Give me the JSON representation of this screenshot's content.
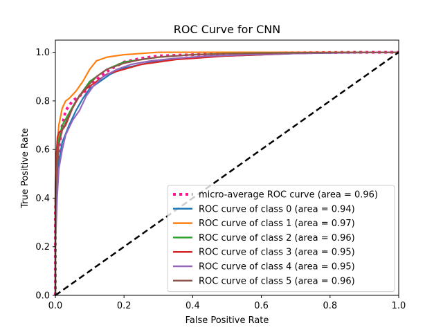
{
  "chart_data": {
    "type": "line",
    "title": "ROC Curve for CNN",
    "xlabel": "False Positive Rate",
    "ylabel": "True Positive Rate",
    "xlim": [
      0.0,
      1.0
    ],
    "ylim": [
      0.0,
      1.05
    ],
    "xticks": [
      0.0,
      0.2,
      0.4,
      0.6,
      0.8,
      1.0
    ],
    "yticks": [
      0.0,
      0.2,
      0.4,
      0.6,
      0.8,
      1.0
    ],
    "xtick_labels": [
      "0.0",
      "0.2",
      "0.4",
      "0.6",
      "0.8",
      "1.0"
    ],
    "ytick_labels": [
      "0.0",
      "0.2",
      "0.4",
      "0.6",
      "0.8",
      "1.0"
    ],
    "grid": false,
    "legend_position": "lower-right",
    "series": [
      {
        "name": "micro-average ROC curve (area = 0.96)",
        "color": "#ff1493",
        "style": "dotted",
        "x": [
          0.0,
          0.0,
          0.005,
          0.01,
          0.02,
          0.03,
          0.05,
          0.08,
          0.1,
          0.13,
          0.16,
          0.2,
          0.25,
          0.3,
          0.4,
          0.5,
          0.6,
          0.7,
          0.8,
          0.9,
          1.0
        ],
        "y": [
          0.0,
          0.35,
          0.5,
          0.6,
          0.7,
          0.76,
          0.8,
          0.83,
          0.86,
          0.9,
          0.93,
          0.96,
          0.975,
          0.985,
          0.99,
          0.995,
          0.997,
          0.998,
          0.999,
          1.0,
          1.0
        ]
      },
      {
        "name": "ROC curve of class 0 (area = 0.94)",
        "color": "#1f77b4",
        "style": "solid",
        "x": [
          0.0,
          0.0,
          0.005,
          0.01,
          0.02,
          0.04,
          0.06,
          0.08,
          0.1,
          0.13,
          0.16,
          0.2,
          0.25,
          0.3,
          0.4,
          0.5,
          0.6,
          0.7,
          0.8,
          0.9,
          1.0
        ],
        "y": [
          0.0,
          0.3,
          0.45,
          0.55,
          0.63,
          0.7,
          0.76,
          0.81,
          0.85,
          0.88,
          0.91,
          0.935,
          0.95,
          0.965,
          0.98,
          0.985,
          0.99,
          0.995,
          0.997,
          0.999,
          1.0
        ]
      },
      {
        "name": "ROC curve of class 1 (area = 0.97)",
        "color": "#ff7f0e",
        "style": "solid",
        "x": [
          0.0,
          0.0,
          0.005,
          0.01,
          0.02,
          0.03,
          0.04,
          0.06,
          0.08,
          0.1,
          0.12,
          0.15,
          0.2,
          0.25,
          0.3,
          0.4,
          0.5,
          0.6,
          0.8,
          1.0
        ],
        "y": [
          0.0,
          0.4,
          0.6,
          0.7,
          0.77,
          0.8,
          0.81,
          0.84,
          0.88,
          0.93,
          0.965,
          0.98,
          0.99,
          0.995,
          1.0,
          1.0,
          1.0,
          1.0,
          1.0,
          1.0
        ]
      },
      {
        "name": "ROC curve of class 2 (area = 0.96)",
        "color": "#2ca02c",
        "style": "solid",
        "x": [
          0.0,
          0.0,
          0.005,
          0.01,
          0.02,
          0.04,
          0.06,
          0.08,
          0.1,
          0.12,
          0.15,
          0.2,
          0.25,
          0.3,
          0.4,
          0.5,
          0.6,
          0.8,
          1.0
        ],
        "y": [
          0.0,
          0.4,
          0.55,
          0.64,
          0.7,
          0.75,
          0.8,
          0.84,
          0.88,
          0.9,
          0.93,
          0.96,
          0.97,
          0.98,
          0.99,
          0.995,
          0.997,
          0.999,
          1.0
        ]
      },
      {
        "name": "ROC curve of class 3 (area = 0.95)",
        "color": "#d62728",
        "style": "solid",
        "x": [
          0.0,
          0.0,
          0.003,
          0.006,
          0.01,
          0.02,
          0.03,
          0.05,
          0.07,
          0.09,
          0.12,
          0.15,
          0.2,
          0.25,
          0.3,
          0.35,
          0.4,
          0.5,
          0.6,
          0.7,
          0.8,
          1.0
        ],
        "y": [
          0.0,
          0.45,
          0.58,
          0.65,
          0.67,
          0.68,
          0.7,
          0.77,
          0.82,
          0.85,
          0.88,
          0.91,
          0.93,
          0.95,
          0.96,
          0.97,
          0.975,
          0.985,
          0.99,
          0.995,
          0.998,
          1.0
        ]
      },
      {
        "name": "ROC curve of class 4 (area = 0.95)",
        "color": "#9467bd",
        "style": "solid",
        "x": [
          0.0,
          0.0,
          0.005,
          0.01,
          0.02,
          0.03,
          0.05,
          0.07,
          0.09,
          0.11,
          0.14,
          0.18,
          0.22,
          0.28,
          0.35,
          0.45,
          0.55,
          0.7,
          0.85,
          1.0
        ],
        "y": [
          0.0,
          0.2,
          0.4,
          0.52,
          0.6,
          0.66,
          0.72,
          0.76,
          0.82,
          0.86,
          0.9,
          0.93,
          0.95,
          0.965,
          0.975,
          0.985,
          0.99,
          0.995,
          0.998,
          1.0
        ]
      },
      {
        "name": "ROC curve of class 5 (area = 0.96)",
        "color": "#8c564b",
        "style": "solid",
        "x": [
          0.0,
          0.0,
          0.005,
          0.01,
          0.02,
          0.04,
          0.06,
          0.08,
          0.1,
          0.12,
          0.15,
          0.2,
          0.25,
          0.3,
          0.4,
          0.5,
          0.6,
          0.8,
          1.0
        ],
        "y": [
          0.0,
          0.35,
          0.52,
          0.62,
          0.68,
          0.74,
          0.8,
          0.84,
          0.87,
          0.9,
          0.93,
          0.955,
          0.97,
          0.98,
          0.99,
          0.994,
          0.996,
          0.999,
          1.0
        ]
      },
      {
        "name": "",
        "color": "#000000",
        "style": "dashed",
        "x": [
          0.0,
          1.0
        ],
        "y": [
          0.0,
          1.0
        ]
      }
    ]
  }
}
